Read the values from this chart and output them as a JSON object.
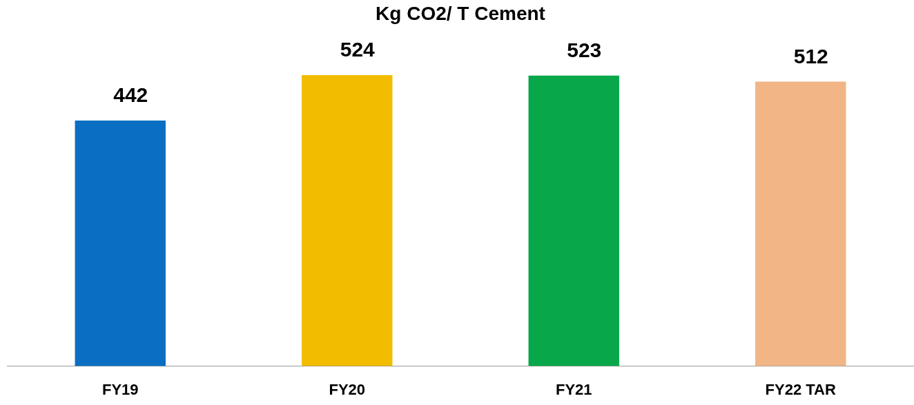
{
  "chart_data": {
    "type": "bar",
    "title": "Kg CO2/ T Cement",
    "categories": [
      "FY19",
      "FY20",
      "FY21",
      "FY22 TAR"
    ],
    "values": [
      442,
      524,
      523,
      512
    ],
    "colors": [
      "#0a6fc2",
      "#f2bd00",
      "#08a84a",
      "#f2b585"
    ],
    "tick_labels": "x",
    "grid": false,
    "legend": false,
    "data_labels": true
  }
}
